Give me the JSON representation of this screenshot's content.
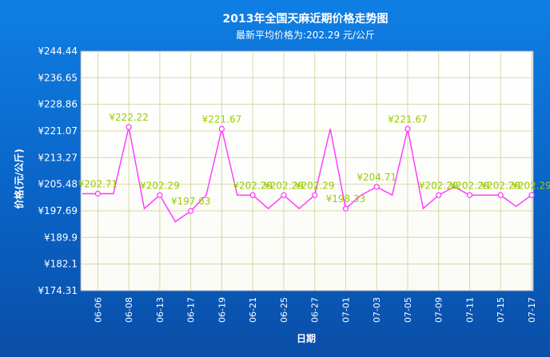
{
  "chart_data": {
    "type": "line",
    "title": "2013年全国天麻近期价格走势图",
    "subtitle": "最新平均价格为:202.29 元/公斤",
    "xlabel": "日期",
    "ylabel": "价格(元/公斤)",
    "y_prefix": "¥",
    "ylim": [
      174.31,
      244.44
    ],
    "yticks": [
      "174.31",
      "182.1",
      "189.9",
      "197.69",
      "205.48",
      "213.27",
      "221.07",
      "228.86",
      "236.65",
      "244.44"
    ],
    "x_tick_labels": [
      "06-06",
      "06-08",
      "06-13",
      "06-17",
      "06-19",
      "06-21",
      "06-25",
      "06-27",
      "07-01",
      "07-03",
      "07-05",
      "07-09",
      "07-11",
      "07-15",
      "07-17"
    ],
    "values": [
      202.71,
      202.71,
      202.71,
      222.22,
      198.33,
      202.29,
      194.5,
      197.63,
      202.29,
      221.67,
      202.29,
      202.29,
      198.33,
      202.29,
      198.33,
      202.29,
      221.67,
      198.33,
      202.29,
      204.71,
      202.29,
      221.67,
      198.33,
      202.29,
      204.71,
      202.29,
      202.29,
      202.29,
      199.0,
      202.29
    ],
    "labeled_points": [
      {
        "index": 1,
        "label": "¥202.71"
      },
      {
        "index": 3,
        "label": "¥222.22"
      },
      {
        "index": 5,
        "label": "¥202.29"
      },
      {
        "index": 7,
        "label": "¥197.63"
      },
      {
        "index": 9,
        "label": "¥221.67"
      },
      {
        "index": 11,
        "label": "¥202.29"
      },
      {
        "index": 13,
        "label": "¥202.29"
      },
      {
        "index": 15,
        "label": "¥202.29"
      },
      {
        "index": 17,
        "label": "¥198.33"
      },
      {
        "index": 19,
        "label": "¥204.71"
      },
      {
        "index": 21,
        "label": "¥221.67"
      },
      {
        "index": 23,
        "label": "¥202.29"
      },
      {
        "index": 25,
        "label": "¥202.29"
      },
      {
        "index": 27,
        "label": "¥202.29"
      },
      {
        "index": 29,
        "label": "¥202.29"
      }
    ],
    "grid": true,
    "colors": {
      "line": "#ff33ff",
      "label": "#99cc00",
      "grid": "#d8d8a8",
      "bg": "#0a63c6"
    }
  }
}
